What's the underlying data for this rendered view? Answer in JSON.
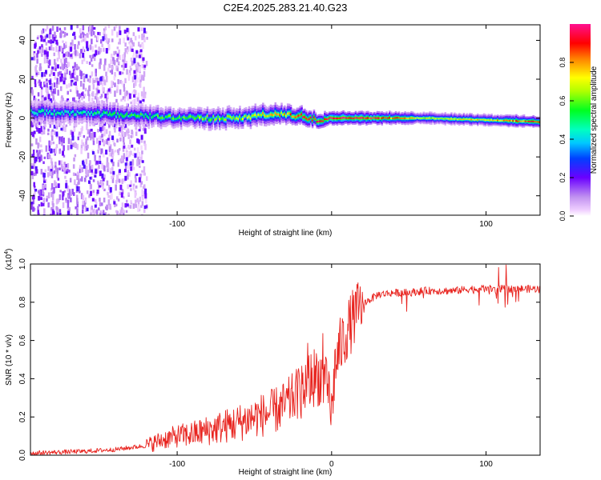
{
  "title": "C2E4.2025.283.21.40.G23",
  "chart_data": [
    {
      "type": "heatmap",
      "title": "C2E4.2025.283.21.40.G23",
      "xlabel": "Height of straight line (km)",
      "ylabel": "Frequency (Hz)",
      "xlim": [
        -195,
        135
      ],
      "ylim": [
        -50,
        48
      ],
      "xticks": [
        -100,
        0,
        100
      ],
      "xtick_labels": [
        "-100",
        "",
        "100"
      ],
      "yticks": [
        -40,
        -20,
        0,
        20,
        40
      ],
      "ytick_labels": [
        "-40",
        "-20",
        "0",
        "20",
        "40"
      ],
      "colorbar": {
        "label": "Normalized spectral amplitude",
        "range": [
          0,
          1
        ],
        "ticks": [
          0.0,
          0.2,
          0.4,
          0.6,
          0.8
        ],
        "tick_labels": [
          "0.0",
          "0.2",
          "0.4",
          "0.6",
          "0.8"
        ],
        "colormap": "rainbow"
      },
      "centre_frequency": [
        {
          "x": -190,
          "f": 3
        },
        {
          "x": -150,
          "f": 2
        },
        {
          "x": -120,
          "f": 1
        },
        {
          "x": -90,
          "f": 0
        },
        {
          "x": -60,
          "f": 0
        },
        {
          "x": -40,
          "f": 2
        },
        {
          "x": -20,
          "f": 1
        },
        {
          "x": -10,
          "f": -1
        },
        {
          "x": 0,
          "f": 0
        },
        {
          "x": 30,
          "f": 0
        },
        {
          "x": 60,
          "f": 0
        },
        {
          "x": 100,
          "f": -1
        },
        {
          "x": 135,
          "f": -2
        }
      ],
      "band_halfwidth_hz": [
        {
          "x": -190,
          "w": 6
        },
        {
          "x": -120,
          "w": 5
        },
        {
          "x": -60,
          "w": 5
        },
        {
          "x": -30,
          "w": 5
        },
        {
          "x": 0,
          "w": 3.5
        },
        {
          "x": 60,
          "w": 3
        },
        {
          "x": 135,
          "w": 3
        }
      ],
      "peak_amplitude": [
        {
          "x": -190,
          "a": 0.45
        },
        {
          "x": -120,
          "a": 0.55
        },
        {
          "x": -60,
          "a": 0.65
        },
        {
          "x": -30,
          "a": 0.8
        },
        {
          "x": -10,
          "a": 0.98
        },
        {
          "x": 20,
          "a": 0.98
        },
        {
          "x": 60,
          "a": 0.7
        },
        {
          "x": 100,
          "a": 0.75
        },
        {
          "x": 135,
          "a": 0.9
        }
      ],
      "noise_region_x": [
        -195,
        -120
      ]
    },
    {
      "type": "line",
      "xlabel": "Height of straight line (km)",
      "ylabel": "SNR (10 * v/v)",
      "y_multiplier": "(x10^4)",
      "xlim": [
        -195,
        135
      ],
      "ylim": [
        0,
        1.0
      ],
      "xticks": [
        -100,
        0,
        100
      ],
      "xtick_labels": [
        "-100",
        "0",
        "100"
      ],
      "yticks": [
        0.0,
        0.2,
        0.4,
        0.6,
        0.8,
        1.0
      ],
      "ytick_labels": [
        "0.0",
        "0.2",
        "0.4",
        "0.6",
        "0.8",
        "1.0"
      ],
      "color": "#e8231e",
      "series": [
        {
          "name": "SNR",
          "x": [
            -195,
            -180,
            -160,
            -140,
            -120,
            -110,
            -100,
            -90,
            -80,
            -70,
            -60,
            -50,
            -40,
            -35,
            -30,
            -25,
            -20,
            -15,
            -10,
            -5,
            -2,
            0,
            2,
            5,
            10,
            15,
            20,
            30,
            40,
            50,
            60,
            70,
            80,
            90,
            100,
            110,
            120,
            135
          ],
          "values": [
            0.01,
            0.015,
            0.02,
            0.03,
            0.05,
            0.08,
            0.1,
            0.11,
            0.13,
            0.15,
            0.17,
            0.2,
            0.22,
            0.24,
            0.26,
            0.3,
            0.34,
            0.38,
            0.42,
            0.4,
            0.3,
            0.2,
            0.45,
            0.55,
            0.65,
            0.73,
            0.79,
            0.84,
            0.85,
            0.85,
            0.86,
            0.86,
            0.86,
            0.87,
            0.87,
            0.87,
            0.87,
            0.87
          ]
        }
      ]
    }
  ]
}
